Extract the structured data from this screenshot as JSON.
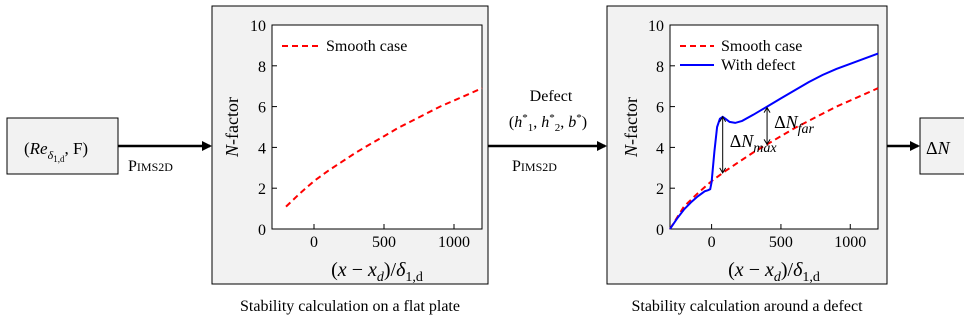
{
  "input_box": {
    "re": "Re",
    "sub": "δ",
    "subsub": "1,d",
    "tail": ", F)",
    "open": "("
  },
  "step1": {
    "tool_p": "P",
    "tool_rest": "IMS2D"
  },
  "step2": {
    "title": "Defect",
    "params": "(h₁*, h₂*, b*)",
    "tool_p": "P",
    "tool_rest": "IMS2D"
  },
  "output_box": {
    "label": "ΔN"
  },
  "captions": {
    "left": "Stability calculation on a flat plate",
    "right": "Stability calculation around a defect"
  },
  "axes": {
    "ylabel": "N-factor",
    "xlabel_main": "(x − x",
    "xlabel_sub_d": "d",
    "xlabel_mid": ")/δ",
    "xlabel_sub_1d": "1,d",
    "xticks": [
      "0",
      "500",
      "1000"
    ],
    "yticks": [
      "0",
      "2",
      "4",
      "6",
      "8",
      "10"
    ]
  },
  "colors": {
    "smooth": "#ff0000",
    "defect": "#0000ff",
    "panel_bg": "#f2f2f2",
    "box_bg": "#f2f2f2"
  },
  "chart_data": [
    {
      "type": "line",
      "xlim": [
        -300,
        1200
      ],
      "ylim": [
        0,
        10
      ],
      "xticks": [
        0,
        500,
        1000
      ],
      "yticks": [
        0,
        2,
        4,
        6,
        8,
        10
      ],
      "legend": "top-left",
      "series": [
        {
          "name": "Smooth case",
          "style": "dashed",
          "color": "#ff0000",
          "x": [
            -200,
            -100,
            0,
            100,
            200,
            300,
            400,
            500,
            600,
            700,
            800,
            900,
            1000,
            1100,
            1200
          ],
          "y": [
            1.1,
            1.75,
            2.35,
            2.85,
            3.3,
            3.75,
            4.15,
            4.55,
            4.95,
            5.3,
            5.65,
            6.0,
            6.3,
            6.6,
            6.9
          ]
        }
      ]
    },
    {
      "type": "line",
      "xlim": [
        -300,
        1200
      ],
      "ylim": [
        0,
        10
      ],
      "xticks": [
        0,
        500,
        1000
      ],
      "yticks": [
        0,
        2,
        4,
        6,
        8,
        10
      ],
      "legend": "top-left",
      "series": [
        {
          "name": "Smooth case",
          "style": "dashed",
          "color": "#ff0000",
          "x": [
            -300,
            -200,
            -100,
            0,
            100,
            200,
            300,
            400,
            500,
            600,
            700,
            800,
            900,
            1000,
            1100,
            1200
          ],
          "y": [
            0.0,
            1.1,
            1.75,
            2.35,
            2.85,
            3.3,
            3.75,
            4.15,
            4.55,
            4.95,
            5.3,
            5.65,
            6.0,
            6.3,
            6.6,
            6.9
          ]
        },
        {
          "name": "With defect",
          "style": "solid",
          "color": "#0000ff",
          "x": [
            -300,
            -250,
            -200,
            -150,
            -100,
            -50,
            -25,
            -10,
            0,
            20,
            40,
            60,
            80,
            100,
            130,
            170,
            220,
            300,
            400,
            500,
            600,
            700,
            800,
            900,
            1000,
            1100,
            1200
          ],
          "y": [
            0.0,
            0.5,
            0.95,
            1.3,
            1.6,
            1.85,
            1.9,
            1.95,
            2.3,
            3.8,
            5.0,
            5.4,
            5.5,
            5.4,
            5.25,
            5.2,
            5.3,
            5.6,
            6.0,
            6.4,
            6.8,
            7.2,
            7.55,
            7.85,
            8.1,
            8.35,
            8.6
          ]
        }
      ],
      "annotations": [
        {
          "text": "ΔN",
          "subscript": "max",
          "x": 80,
          "y_from": 2.75,
          "y_to": 5.5
        },
        {
          "text": "ΔN",
          "subscript": "far",
          "x": 400,
          "y_from": 4.15,
          "y_to": 5.95
        }
      ]
    }
  ]
}
